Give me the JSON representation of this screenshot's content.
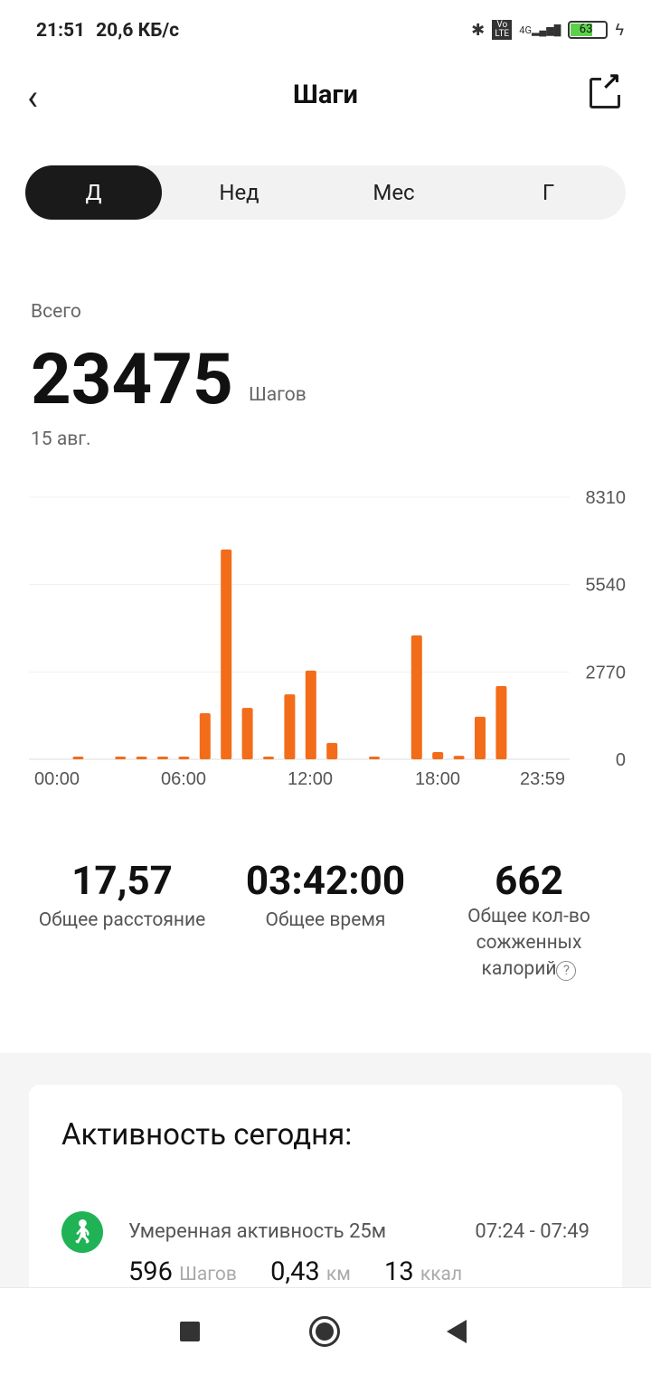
{
  "status": {
    "time": "21:51",
    "speed": "20,6 КБ/с",
    "network": "4G",
    "volte": "Vo LTE",
    "battery": "63"
  },
  "header": {
    "title": "Шаги"
  },
  "tabs": [
    {
      "label": "Д",
      "active": true
    },
    {
      "label": "Нед"
    },
    {
      "label": "Мес"
    },
    {
      "label": "Г"
    }
  ],
  "summary": {
    "label": "Всего",
    "value": "23475",
    "unit": "Шагов",
    "date": "15 авг."
  },
  "chart_data": {
    "type": "bar",
    "x": [
      0,
      1,
      2,
      3,
      4,
      5,
      6,
      7,
      8,
      9,
      10,
      11,
      12,
      13,
      14,
      15,
      16,
      17,
      18,
      19,
      20,
      21,
      22,
      23
    ],
    "values": [
      0,
      30,
      0,
      20,
      40,
      70,
      70,
      1460,
      6650,
      1630,
      20,
      2060,
      2810,
      520,
      0,
      60,
      0,
      3930,
      230,
      110,
      1350,
      2320,
      0,
      0
    ],
    "ylim": [
      0,
      8310
    ],
    "yticks": [
      "8310",
      "5540",
      "2770",
      "0"
    ],
    "xticks": [
      "00:00",
      "06:00",
      "12:00",
      "18:00",
      "23:59"
    ],
    "color": "#f26c1a",
    "grid": true
  },
  "stats": [
    {
      "value": "17,57",
      "label": "Общее расстояние"
    },
    {
      "value": "03:42:00",
      "label": "Общее время"
    },
    {
      "value": "662",
      "label": "Общее кол-во сожженных калорий"
    }
  ],
  "activity": {
    "title": "Активность сегодня:",
    "items": [
      {
        "name": "Умеренная активность 25м",
        "time": "07:24 - 07:49",
        "steps": "596",
        "steps_unit": "Шагов",
        "distance": "0,43",
        "distance_unit": "км",
        "kcal": "13",
        "kcal_unit": "ккал",
        "icon": "walking-icon",
        "icon_color": "#1fb356"
      }
    ]
  }
}
